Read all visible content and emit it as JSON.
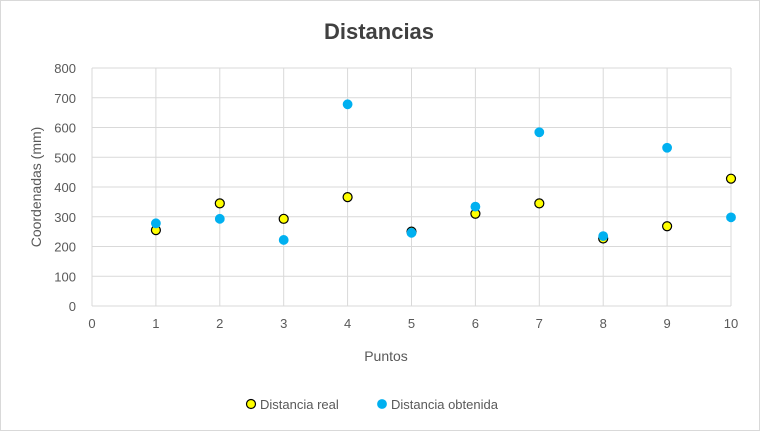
{
  "chart_data": {
    "type": "scatter",
    "title": "Distancias",
    "xlabel": "Puntos",
    "ylabel": "Coordenadas (mm)",
    "xlim": [
      0,
      10
    ],
    "ylim": [
      0,
      800
    ],
    "xticks": [
      0,
      1,
      2,
      3,
      4,
      5,
      6,
      7,
      8,
      9,
      10
    ],
    "yticks": [
      0,
      100,
      200,
      300,
      400,
      500,
      600,
      700,
      800
    ],
    "grid": true,
    "legend_position": "bottom",
    "series": [
      {
        "name": "Distancia real",
        "color": "#ffff00",
        "edge_color": "#000000",
        "x": [
          1,
          2,
          3,
          4,
          5,
          6,
          7,
          8,
          9,
          10
        ],
        "y": [
          255,
          345,
          293,
          366,
          250,
          310,
          345,
          227,
          268,
          428
        ]
      },
      {
        "name": "Distancia obtenida",
        "color": "#00b0f0",
        "edge_color": "#00b0f0",
        "x": [
          1,
          2,
          3,
          4,
          5,
          6,
          7,
          8,
          9,
          10
        ],
        "y": [
          278,
          293,
          222,
          678,
          246,
          334,
          584,
          235,
          532,
          298
        ]
      }
    ]
  }
}
